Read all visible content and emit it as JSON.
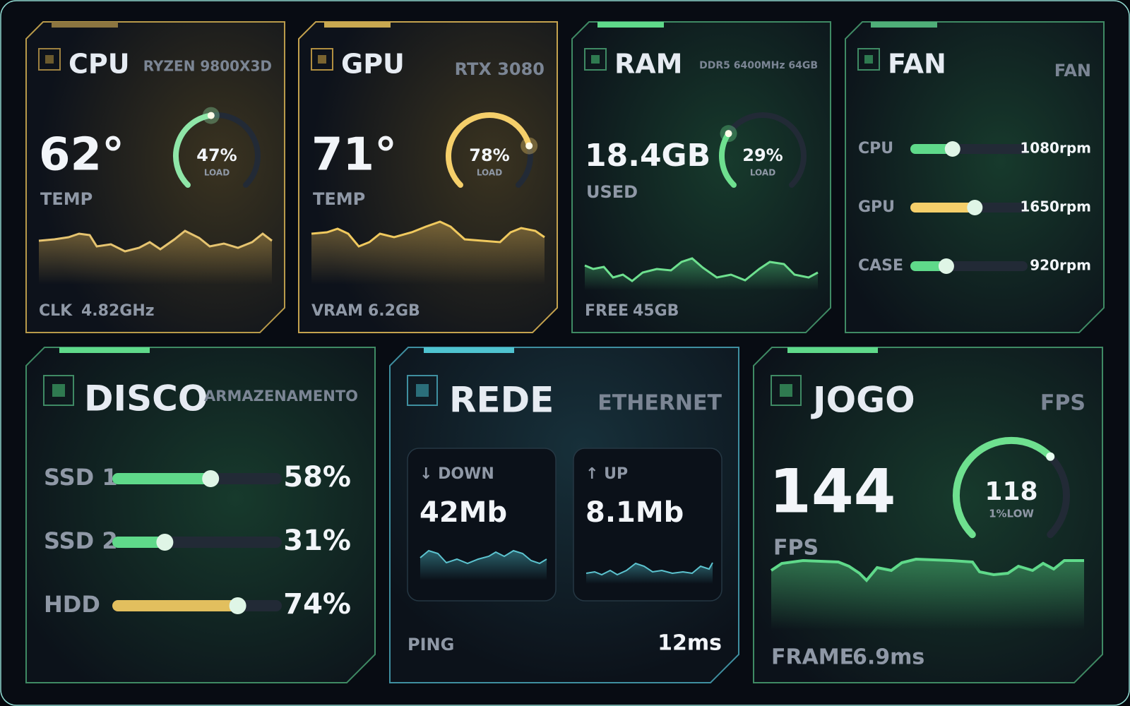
{
  "cards": {
    "cpu": {
      "title": "CPU",
      "subtitle": "RYZEN 9800X3D",
      "temperature": "62°",
      "temperature_label": "TEMP",
      "load": {
        "value": 47,
        "label": "47%"
      },
      "load_caption": "LOAD",
      "footer_label": "CLK",
      "footer_value": "4.82GHz",
      "color": "#8fe6a8"
    },
    "gpu": {
      "title": "GPU",
      "subtitle": "RTX 3080",
      "temperature": "71°",
      "temperature_label": "TEMP",
      "load": {
        "value": 78,
        "label": "78%"
      },
      "load_caption": "LOAD",
      "footer_label": "VRAM",
      "footer_value": "6.2GB",
      "color": "#f5cf6a"
    },
    "ram": {
      "title": "RAM",
      "subtitle": "DDR5 6400MHz 64GB",
      "used": "18.4GB",
      "used_label": "USED",
      "load": {
        "value": 29,
        "label": "29%"
      },
      "load_caption": "LOAD",
      "footer_label": "FREE",
      "footer_value": "45GB",
      "color": "#6ee08f"
    },
    "fan": {
      "title": "FAN",
      "subtitle": "FAN",
      "rows": [
        {
          "name": "CPU",
          "rpm": {
            "value": 1080,
            "label": "1080rpm"
          },
          "color": "#5fd98a"
        },
        {
          "name": "GPU",
          "rpm": {
            "value": 1650,
            "label": "1650rpm"
          },
          "color": "#f5cf6a"
        },
        {
          "name": "CASE",
          "rpm": {
            "value": 920,
            "label": "920rpm"
          },
          "color": "#5fd98a"
        }
      ]
    },
    "disk": {
      "title": "DISCO",
      "subtitle": "ARMAZENAMENTO",
      "rows": [
        {
          "name": "SSD 1",
          "usage": {
            "value": 58,
            "label": "58%"
          },
          "color": "#5fd98a"
        },
        {
          "name": "SSD 2",
          "usage": {
            "value": 31,
            "label": "31%"
          },
          "color": "#5fd98a"
        },
        {
          "name": "HDD",
          "usage": {
            "value": 74,
            "label": "74%"
          },
          "color": "#e2bf5e"
        }
      ]
    },
    "network": {
      "title": "REDE",
      "subtitle": "ETHERNET",
      "down_label": "↓ DOWN",
      "down_value": "42Mb",
      "up_label": "↑ UP",
      "up_value": "8.1Mb",
      "ping_label": "PING",
      "ping_value": "12ms"
    },
    "game": {
      "title": "JOGO",
      "subtitle": "FPS",
      "fps": "144",
      "fps_label": "FPS",
      "low_value": "118",
      "low_label": "1%LOW",
      "footer_label": "FRAME",
      "footer_value": "6.9ms"
    }
  }
}
